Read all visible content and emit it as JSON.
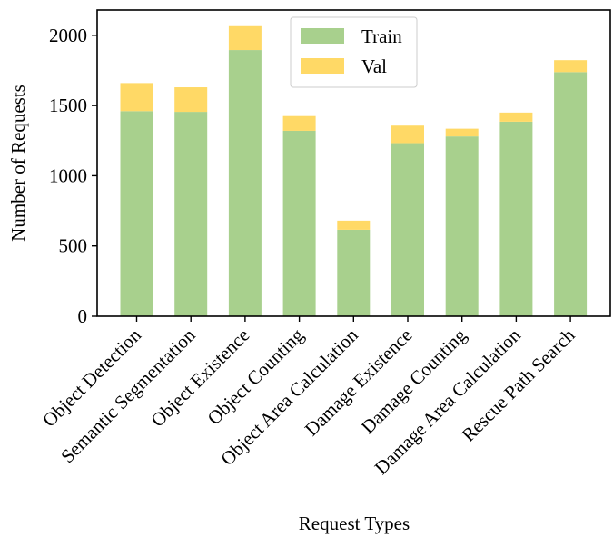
{
  "chart_data": {
    "type": "bar",
    "stacked": true,
    "title": "",
    "xlabel": "Request Types",
    "ylabel": "Number of Requests",
    "ylim": [
      0,
      2180
    ],
    "yticks": [
      0,
      500,
      1000,
      1500,
      2000
    ],
    "categories": [
      "Object Detection",
      "Semantic Segmentation",
      "Object Existence",
      "Object Counting",
      "Object Area Calculation",
      "Damage Existence",
      "Damage Counting",
      "Damage Area Calculation",
      "Rescue Path Search"
    ],
    "series": [
      {
        "name": "Train",
        "color": "#a8d08d",
        "values": [
          1460,
          1455,
          1895,
          1320,
          615,
          1232,
          1280,
          1385,
          1738
        ]
      },
      {
        "name": "Val",
        "color": "#ffd966",
        "values": [
          200,
          175,
          170,
          105,
          65,
          125,
          55,
          65,
          85
        ]
      }
    ],
    "legend": {
      "location": "top-center",
      "entries": [
        "Train",
        "Val"
      ]
    },
    "grid": false
  }
}
